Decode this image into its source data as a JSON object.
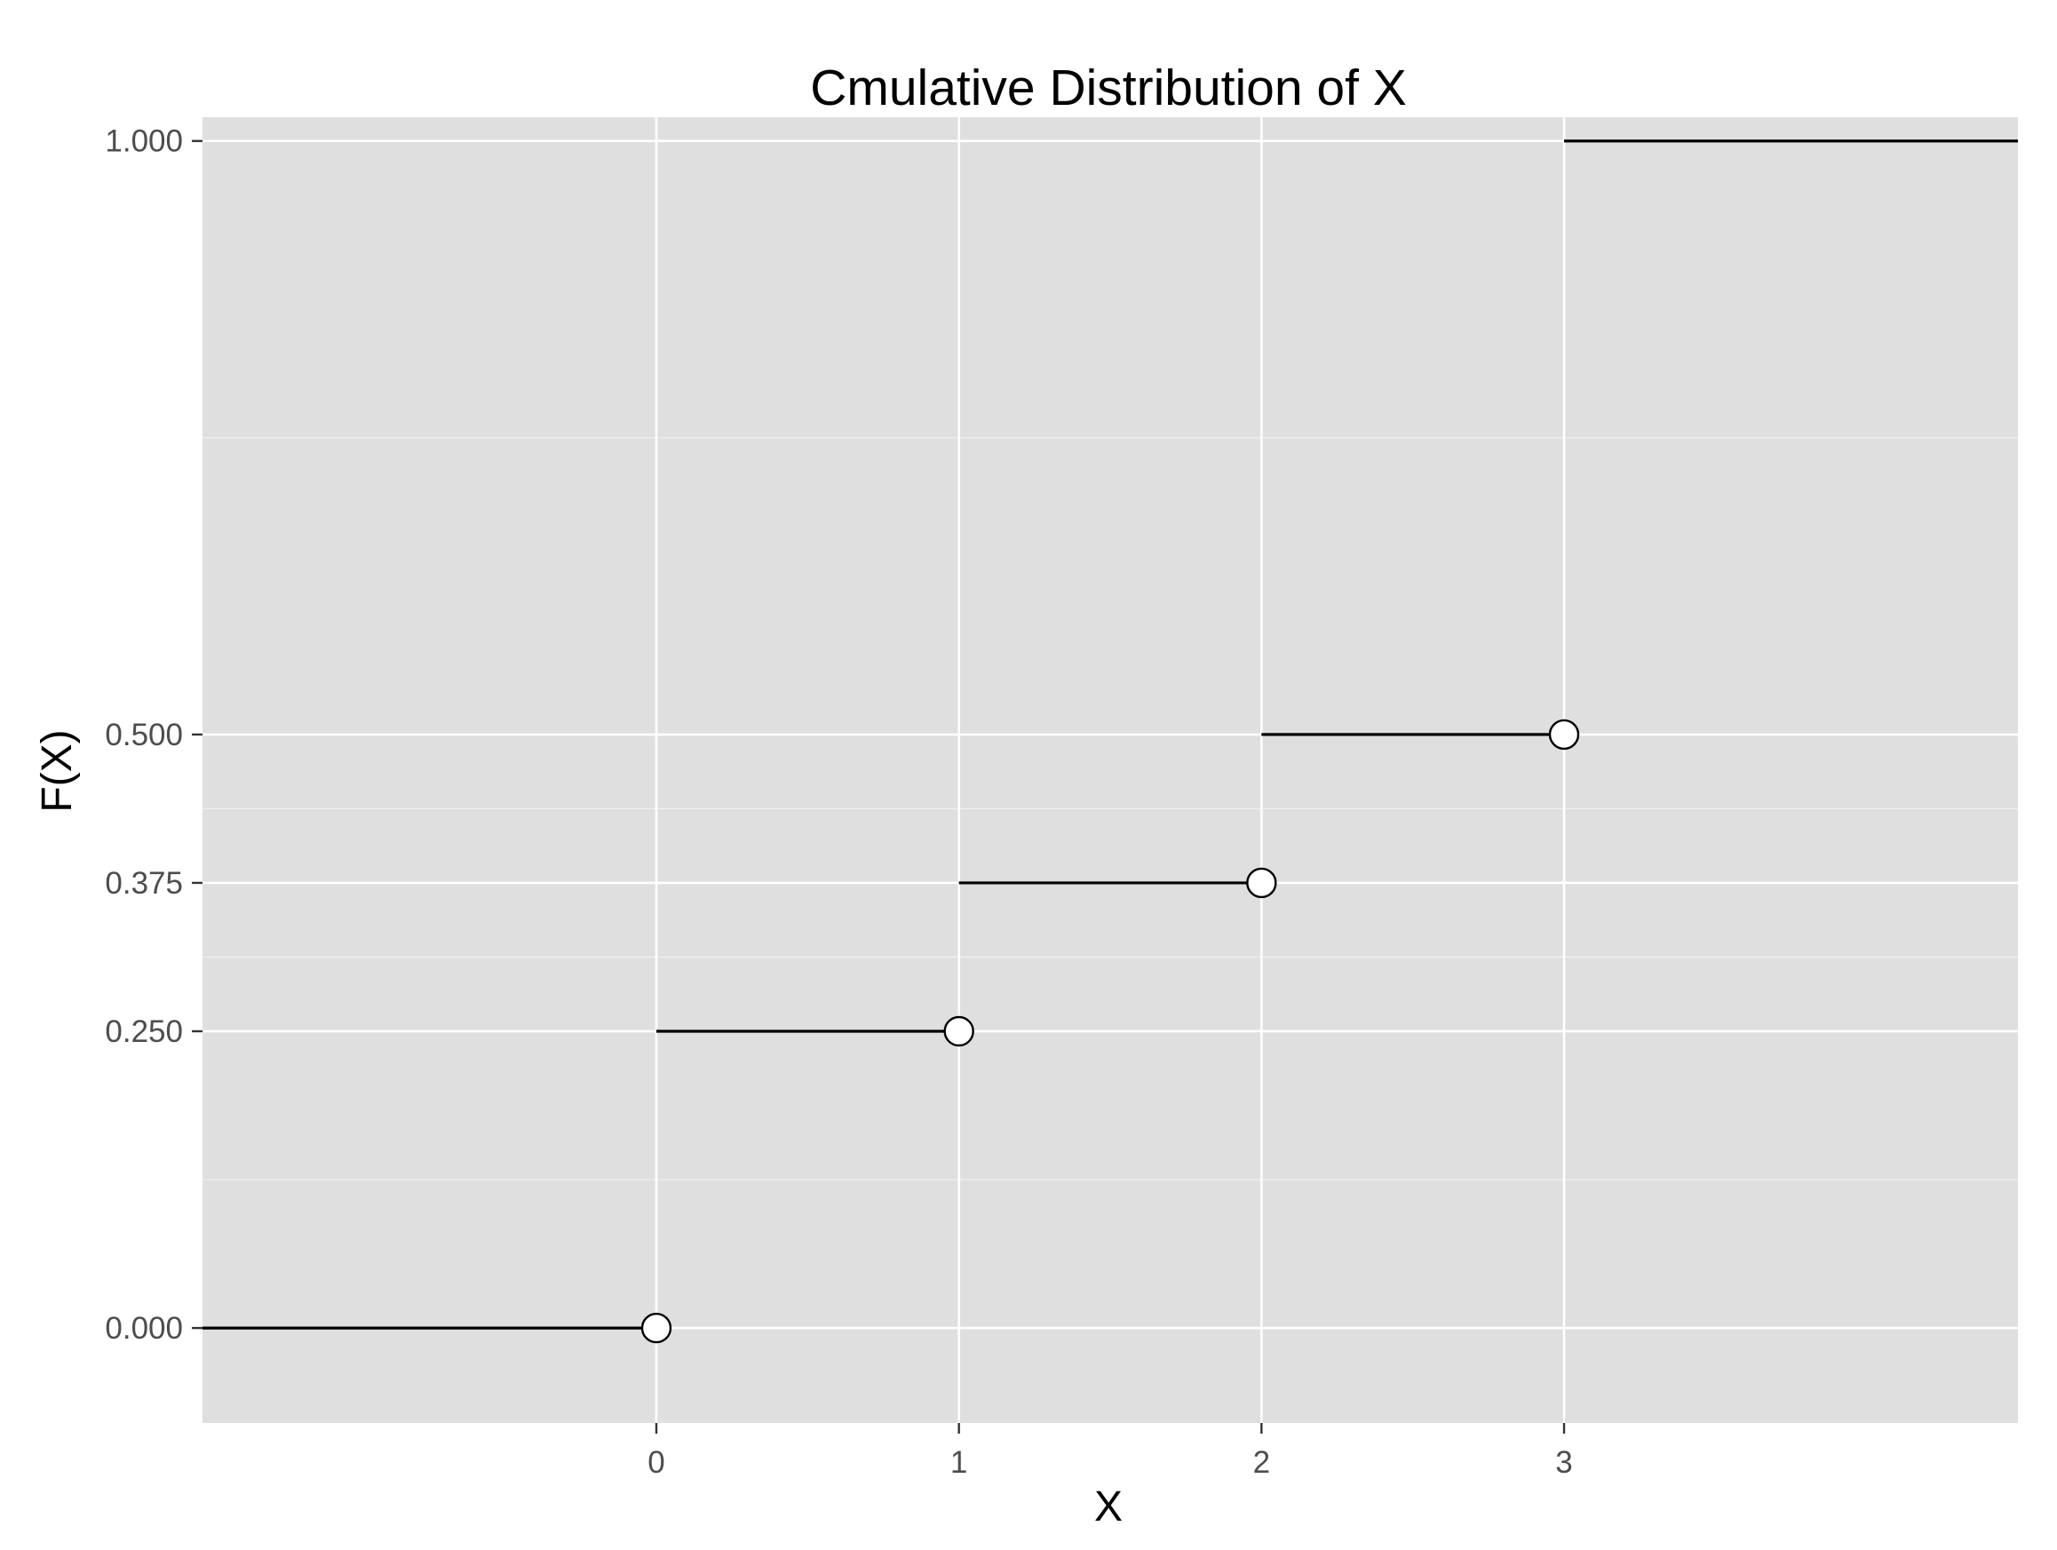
{
  "chart_data": {
    "type": "line",
    "title": "Cmulative Distribution of X",
    "xlabel": "X",
    "ylabel": "F(X)",
    "xlim": [
      -1.5,
      4.5
    ],
    "ylim": [
      -0.08,
      1.02
    ],
    "x_ticks": [
      {
        "value": 0,
        "label": "0"
      },
      {
        "value": 1,
        "label": "1"
      },
      {
        "value": 2,
        "label": "2"
      },
      {
        "value": 3,
        "label": "3"
      }
    ],
    "y_ticks": [
      {
        "value": 0,
        "label": "0.000"
      },
      {
        "value": 0.25,
        "label": "0.250"
      },
      {
        "value": 0.375,
        "label": "0.375"
      },
      {
        "value": 0.5,
        "label": "0.500"
      },
      {
        "value": 1,
        "label": "1.000"
      }
    ],
    "y_minor_grid": [
      0.125,
      0.3125,
      0.4375,
      0.75
    ],
    "segments": [
      {
        "x_start": -1.5,
        "x_end": 0,
        "y": 0
      },
      {
        "x_start": 0,
        "x_end": 1,
        "y": 0.25
      },
      {
        "x_start": 1,
        "x_end": 2,
        "y": 0.375
      },
      {
        "x_start": 2,
        "x_end": 3,
        "y": 0.5
      },
      {
        "x_start": 3,
        "x_end": 4.5,
        "y": 1
      }
    ],
    "open_points": [
      {
        "x": 0,
        "y": 0
      },
      {
        "x": 1,
        "y": 0.25
      },
      {
        "x": 2,
        "y": 0.375
      },
      {
        "x": 3,
        "y": 0.5
      }
    ],
    "grid": true,
    "legend": "none",
    "colors": {
      "panel_background": "#dfdfdf",
      "grid": "#ffffff",
      "line": "#000000",
      "point_fill": "#ffffff",
      "point_stroke": "#000000",
      "tick_label": "#4d4d4d",
      "tick_mark": "#333333"
    }
  }
}
